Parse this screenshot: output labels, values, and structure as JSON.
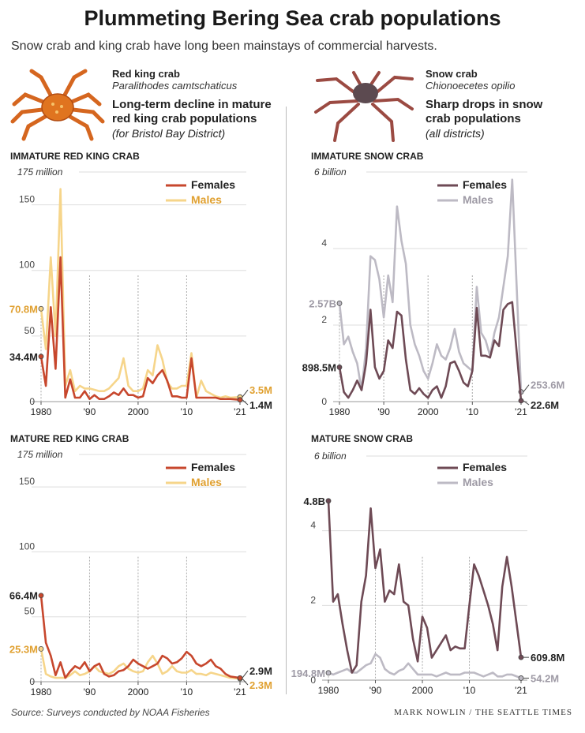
{
  "header": {
    "title": "Plummeting Bering Sea crab populations",
    "subtitle": "Snow crab and king crab have long been mainstays of commercial harvests."
  },
  "species": {
    "red": {
      "name": "Red king crab",
      "sci": "Paralithodes camtschaticus",
      "headline": "Long-term decline in mature red king crab populations",
      "note": "(for Bristol Bay District)"
    },
    "snow": {
      "name": "Snow crab",
      "sci": "Chionoecetes opilio",
      "headline": "Sharp drops in snow crab populations",
      "note": "(all districts)"
    }
  },
  "colors": {
    "red_female": "#c7472d",
    "red_male": "#f6d58a",
    "red_male_label": "#e0a030",
    "snow_female": "#6e4a55",
    "snow_male": "#bdbac4",
    "snow_male_label": "#9e9aa5",
    "grid": "#dddddd"
  },
  "footer": {
    "source": "Source: Surveys conducted by NOAA Fisheries",
    "credit": "MARK NOWLIN / THE SEATTLE TIMES"
  },
  "chart_data": [
    {
      "id": "imm-red",
      "type": "line",
      "title": "IMMATURE RED KING CRAB",
      "unit_label": "175 million",
      "xlim": [
        1980,
        2021
      ],
      "ylim": [
        0,
        175
      ],
      "yticks": [
        50,
        100,
        150
      ],
      "ytick_labels": [
        "50",
        "100",
        "150"
      ],
      "xticks": [
        1980,
        1990,
        2000,
        2010,
        2021
      ],
      "xtick_labels": [
        "1980",
        "'90",
        "2000",
        "'10",
        "'21"
      ],
      "x": [
        1980,
        1981,
        1982,
        1983,
        1984,
        1985,
        1986,
        1987,
        1988,
        1989,
        1990,
        1991,
        1992,
        1993,
        1994,
        1995,
        1996,
        1997,
        1998,
        1999,
        2000,
        2001,
        2002,
        2003,
        2004,
        2005,
        2006,
        2007,
        2008,
        2009,
        2010,
        2011,
        2012,
        2013,
        2014,
        2015,
        2016,
        2017,
        2018,
        2019,
        2021
      ],
      "series": [
        {
          "name": "Males",
          "color_key": "red_male",
          "values": [
            70.8,
            40,
            110,
            50,
            162,
            12,
            24,
            8,
            12,
            10,
            10,
            9,
            8,
            8,
            10,
            14,
            18,
            33,
            12,
            8,
            8,
            10,
            24,
            20,
            43,
            32,
            15,
            10,
            10,
            12,
            12,
            37,
            3,
            16,
            8,
            6,
            4,
            3,
            4,
            3,
            3.5
          ]
        },
        {
          "name": "Females",
          "color_key": "red_female",
          "values": [
            34.4,
            12,
            72,
            25,
            110,
            3,
            17,
            3,
            3,
            8,
            2,
            5,
            2,
            2,
            4,
            7,
            5,
            10,
            5,
            5,
            3,
            4,
            18,
            14,
            20,
            24,
            16,
            4,
            4,
            3,
            3,
            33,
            3,
            3,
            3,
            3,
            3,
            2,
            2,
            2,
            1.4
          ]
        }
      ],
      "start_labels": [
        {
          "text": "70.8M",
          "series": 0
        },
        {
          "text": "34.4M",
          "series": 1
        }
      ],
      "end_labels": [
        {
          "text": "3.5M",
          "series": 0
        },
        {
          "text": "1.4M",
          "series": 1
        }
      ]
    },
    {
      "id": "imm-snow",
      "type": "line",
      "title": "IMMATURE SNOW CRAB",
      "unit_label": "6 billion",
      "xlim": [
        1980,
        2021
      ],
      "ylim": [
        0,
        6
      ],
      "yticks": [
        2,
        4
      ],
      "ytick_labels": [
        "2",
        "4"
      ],
      "xticks": [
        1980,
        1990,
        2000,
        2010,
        2021
      ],
      "xtick_labels": [
        "1980",
        "'90",
        "2000",
        "'10",
        "'21"
      ],
      "x": [
        1980,
        1981,
        1982,
        1983,
        1984,
        1985,
        1986,
        1987,
        1988,
        1989,
        1990,
        1991,
        1992,
        1993,
        1994,
        1995,
        1996,
        1997,
        1998,
        1999,
        2000,
        2001,
        2002,
        2003,
        2004,
        2005,
        2006,
        2007,
        2008,
        2009,
        2010,
        2011,
        2012,
        2013,
        2014,
        2015,
        2016,
        2017,
        2018,
        2019,
        2021
      ],
      "series": [
        {
          "name": "Males",
          "color_key": "snow_male",
          "values": [
            2.57,
            1.5,
            1.7,
            1.3,
            1.0,
            0.3,
            1.4,
            3.8,
            3.7,
            3.2,
            2.2,
            3.3,
            2.6,
            5.1,
            4.2,
            3.6,
            2.0,
            1.5,
            1.2,
            0.8,
            0.6,
            1.0,
            1.5,
            1.2,
            1.1,
            1.4,
            1.9,
            1.3,
            1.0,
            0.9,
            0.8,
            3.0,
            1.8,
            1.6,
            1.2,
            1.8,
            2.2,
            3.0,
            3.8,
            5.8,
            0.2536
          ]
        },
        {
          "name": "Females",
          "color_key": "snow_female",
          "values": [
            0.8985,
            0.25,
            0.1,
            0.3,
            0.55,
            0.3,
            1.0,
            2.4,
            0.9,
            0.6,
            0.8,
            1.6,
            1.4,
            2.35,
            2.25,
            1.1,
            0.3,
            0.2,
            0.35,
            0.2,
            0.1,
            0.3,
            0.4,
            0.1,
            0.4,
            1.0,
            1.05,
            0.8,
            0.5,
            0.4,
            0.8,
            2.45,
            1.2,
            1.2,
            1.15,
            1.6,
            1.45,
            2.4,
            2.55,
            2.6,
            0.0226
          ]
        }
      ],
      "start_labels": [
        {
          "text": "2.57B",
          "series": 0
        },
        {
          "text": "898.5M",
          "series": 1
        }
      ],
      "end_labels": [
        {
          "text": "253.6M",
          "series": 0
        },
        {
          "text": "22.6M",
          "series": 1
        }
      ]
    },
    {
      "id": "mat-red",
      "type": "line",
      "title": "MATURE RED KING CRAB",
      "unit_label": "175  million",
      "xlim": [
        1980,
        2021
      ],
      "ylim": [
        0,
        175
      ],
      "yticks": [
        50,
        100,
        150
      ],
      "ytick_labels": [
        "50",
        "100",
        "150"
      ],
      "xticks": [
        1980,
        1990,
        2000,
        2010,
        2021
      ],
      "xtick_labels": [
        "1980",
        "'90",
        "2000",
        "'10",
        "'21"
      ],
      "x": [
        1980,
        1981,
        1982,
        1983,
        1984,
        1985,
        1986,
        1987,
        1988,
        1989,
        1990,
        1991,
        1992,
        1993,
        1994,
        1995,
        1996,
        1997,
        1998,
        1999,
        2000,
        2001,
        2002,
        2003,
        2004,
        2005,
        2006,
        2007,
        2008,
        2009,
        2010,
        2011,
        2012,
        2013,
        2014,
        2015,
        2016,
        2017,
        2018,
        2019,
        2021
      ],
      "series": [
        {
          "name": "Males",
          "color_key": "red_male",
          "values": [
            25.3,
            6,
            4,
            3,
            3,
            3,
            5,
            8,
            5,
            6,
            8,
            12,
            8,
            7,
            6,
            8,
            12,
            14,
            10,
            8,
            7,
            8,
            15,
            20,
            14,
            6,
            8,
            12,
            8,
            7,
            7,
            9,
            6,
            6,
            5,
            7,
            6,
            5,
            4,
            3,
            2.3
          ]
        },
        {
          "name": "Females",
          "color_key": "red_female",
          "values": [
            66.4,
            30,
            20,
            5,
            15,
            3,
            8,
            12,
            10,
            15,
            8,
            12,
            14,
            6,
            4,
            5,
            8,
            9,
            12,
            17,
            14,
            12,
            10,
            12,
            14,
            20,
            18,
            14,
            15,
            18,
            23,
            20,
            14,
            12,
            14,
            17,
            12,
            10,
            6,
            4,
            2.9
          ]
        }
      ],
      "start_labels": [
        {
          "text": "25.3M",
          "series": 0
        },
        {
          "text": "66.4M",
          "series": 1
        }
      ],
      "end_labels": [
        {
          "text": "2.9M",
          "series": 1
        },
        {
          "text": "2.3M",
          "series": 0
        }
      ]
    },
    {
      "id": "mat-snow",
      "type": "line",
      "title": "MATURE SNOW CRAB",
      "unit_label": "6 billion",
      "xlim": [
        1980,
        2021
      ],
      "ylim": [
        0,
        6
      ],
      "yticks": [
        2,
        4
      ],
      "ytick_labels": [
        "2",
        "4"
      ],
      "xticks": [
        1980,
        1990,
        2000,
        2010,
        2021
      ],
      "xtick_labels": [
        "1980",
        "'90",
        "2000",
        "'10",
        "'21"
      ],
      "x": [
        1980,
        1981,
        1982,
        1983,
        1984,
        1985,
        1986,
        1987,
        1988,
        1989,
        1990,
        1991,
        1992,
        1993,
        1994,
        1995,
        1996,
        1997,
        1998,
        1999,
        2000,
        2001,
        2002,
        2003,
        2004,
        2005,
        2006,
        2007,
        2008,
        2009,
        2010,
        2011,
        2012,
        2013,
        2014,
        2015,
        2016,
        2017,
        2018,
        2019,
        2021
      ],
      "series": [
        {
          "name": "Males",
          "color_key": "snow_male",
          "values": [
            0.1948,
            0.15,
            0.2,
            0.25,
            0.3,
            0.2,
            0.2,
            0.3,
            0.4,
            0.45,
            0.7,
            0.6,
            0.3,
            0.2,
            0.15,
            0.25,
            0.3,
            0.45,
            0.3,
            0.15,
            0.15,
            0.15,
            0.15,
            0.1,
            0.15,
            0.2,
            0.15,
            0.15,
            0.15,
            0.2,
            0.2,
            0.2,
            0.15,
            0.1,
            0.15,
            0.2,
            0.1,
            0.1,
            0.15,
            0.15,
            0.0542
          ]
        },
        {
          "name": "Females",
          "color_key": "snow_female",
          "values": [
            4.8,
            2.1,
            2.3,
            1.5,
            0.8,
            0.2,
            0.4,
            2.1,
            2.8,
            4.6,
            3.0,
            3.5,
            2.1,
            2.4,
            2.3,
            3.1,
            2.1,
            2.0,
            1.1,
            0.5,
            1.7,
            1.4,
            0.6,
            0.8,
            1.0,
            1.2,
            0.8,
            0.9,
            0.85,
            0.85,
            2.0,
            3.1,
            2.8,
            2.4,
            2.0,
            1.5,
            0.8,
            2.5,
            3.3,
            2.5,
            0.6098
          ]
        }
      ],
      "start_labels": [
        {
          "text": "194.8M",
          "series": 0
        },
        {
          "text": "4.8B",
          "series": 1
        }
      ],
      "end_labels": [
        {
          "text": "609.8M",
          "series": 1
        },
        {
          "text": "54.2M",
          "series": 0
        }
      ]
    }
  ]
}
